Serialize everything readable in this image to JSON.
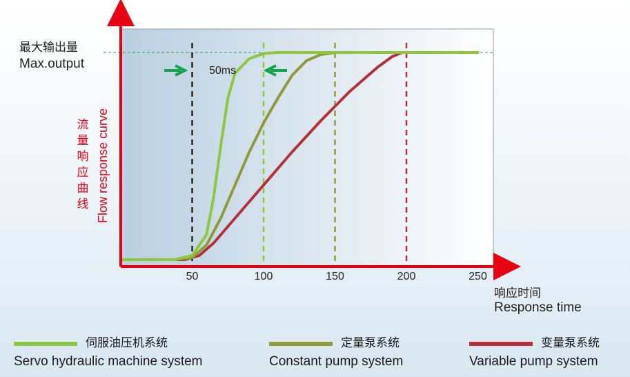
{
  "chart_data": {
    "type": "line",
    "y_label_zh": "流量响应曲线",
    "y_label_en": "Flow response curve",
    "x_label_zh": "响应时间",
    "x_label_en": "Response time",
    "max_label_zh": "最大输出量",
    "max_label_en": "Max.output",
    "annotation": "50ms",
    "x_ticks": [
      50,
      100,
      150,
      200,
      250
    ],
    "xlim": [
      0,
      265
    ],
    "ylim": [
      0,
      1.05
    ],
    "series": [
      {
        "name": "伺服油压机系统 Servo hydraulic machine system",
        "color": "#8dc63f",
        "marker_x": 100,
        "points": [
          [
            0,
            0
          ],
          [
            38,
            0
          ],
          [
            50,
            0.02
          ],
          [
            60,
            0.12
          ],
          [
            65,
            0.3
          ],
          [
            70,
            0.55
          ],
          [
            75,
            0.78
          ],
          [
            80,
            0.9
          ],
          [
            90,
            0.97
          ],
          [
            100,
            0.995
          ],
          [
            110,
            1
          ],
          [
            250,
            1
          ]
        ]
      },
      {
        "name": "定量泵系统 Constant pump system",
        "color": "#8f9a3a",
        "marker_x": 150,
        "points": [
          [
            0,
            0
          ],
          [
            38,
            0
          ],
          [
            50,
            0.01
          ],
          [
            60,
            0.07
          ],
          [
            70,
            0.2
          ],
          [
            80,
            0.36
          ],
          [
            90,
            0.52
          ],
          [
            100,
            0.66
          ],
          [
            110,
            0.78
          ],
          [
            120,
            0.89
          ],
          [
            130,
            0.96
          ],
          [
            140,
            0.99
          ],
          [
            150,
            1
          ],
          [
            250,
            1
          ]
        ]
      },
      {
        "name": "变量泵系统 Variable pump system",
        "color": "#b2303a",
        "marker_x": 200,
        "points": [
          [
            0,
            0
          ],
          [
            45,
            0
          ],
          [
            55,
            0.02
          ],
          [
            65,
            0.08
          ],
          [
            80,
            0.2
          ],
          [
            100,
            0.36
          ],
          [
            120,
            0.52
          ],
          [
            140,
            0.67
          ],
          [
            160,
            0.81
          ],
          [
            180,
            0.93
          ],
          [
            190,
            0.98
          ],
          [
            197,
            1
          ],
          [
            250,
            1
          ]
        ]
      }
    ],
    "reference_marker_x": 50
  },
  "legend": [
    {
      "zh": "伺服油压机系统",
      "en": "Servo hydraulic machine system",
      "color": "#8dc63f"
    },
    {
      "zh": "定量泵系统",
      "en": "Constant pump system",
      "color": "#8f9a3a"
    },
    {
      "zh": "变量泵系统",
      "en": "Variable pump system",
      "color": "#b2303a"
    }
  ]
}
